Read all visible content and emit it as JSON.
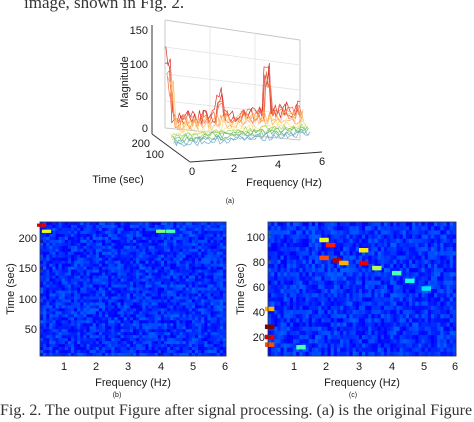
{
  "top_text": "image, shown in Fig. 2.",
  "caption": "Fig. 2. The output Figure after signal processing. (a) is the original Figure",
  "chart_data": [
    {
      "type": "surface3d",
      "panel_label": "(a)",
      "xlabel": "Frequency (Hz)",
      "ylabel": "Time (sec)",
      "zlabel": "Magnitude",
      "x_ticks": [
        "0",
        "2",
        "4",
        "6"
      ],
      "y_ticks": [
        "100",
        "200"
      ],
      "z_ticks": [
        "0",
        "50",
        "100",
        "150"
      ],
      "xlim": [
        0,
        6
      ],
      "ylim": [
        0,
        220
      ],
      "zlim": [
        0,
        150
      ],
      "peaks": [
        {
          "x": 0.1,
          "y": 220,
          "z": 130
        },
        {
          "x": 0.1,
          "y": 150,
          "z": 90
        },
        {
          "x": 2.4,
          "y": 200,
          "z": 55
        },
        {
          "x": 4.5,
          "y": 200,
          "z": 90
        }
      ]
    },
    {
      "type": "heatmap",
      "panel_label": "(b)",
      "xlabel": "Frequency (Hz)",
      "ylabel": "Time (sec)",
      "x_ticks": [
        "1",
        "2",
        "3",
        "4",
        "5",
        "6"
      ],
      "y_ticks": [
        "50",
        "100",
        "150",
        "200"
      ],
      "xlim": [
        0.3,
        6
      ],
      "ylim": [
        10,
        230
      ],
      "hot_spots": [
        {
          "x": 0.35,
          "y": 225,
          "level": 0.9
        },
        {
          "x": 0.5,
          "y": 215,
          "level": 0.6
        },
        {
          "x": 4.0,
          "y": 215,
          "level": 0.5
        },
        {
          "x": 4.3,
          "y": 215,
          "level": 0.45
        }
      ]
    },
    {
      "type": "heatmap",
      "panel_label": "(c)",
      "xlabel": "Frequency (Hz)",
      "ylabel": "Time (sec)",
      "x_ticks": [
        "1",
        "2",
        "3",
        "4",
        "5",
        "6"
      ],
      "y_ticks": [
        "20",
        "40",
        "60",
        "80",
        "100"
      ],
      "xlim": [
        0.3,
        6
      ],
      "ylim": [
        5,
        110
      ],
      "hot_spots": [
        {
          "x": 2.0,
          "y": 96,
          "level": 0.6
        },
        {
          "x": 2.2,
          "y": 92,
          "level": 0.85
        },
        {
          "x": 2.0,
          "y": 82,
          "level": 0.8
        },
        {
          "x": 2.4,
          "y": 80,
          "level": 0.95
        },
        {
          "x": 2.6,
          "y": 78,
          "level": 0.7
        },
        {
          "x": 3.2,
          "y": 88,
          "level": 0.65
        },
        {
          "x": 3.2,
          "y": 78,
          "level": 0.9
        },
        {
          "x": 3.6,
          "y": 74,
          "level": 0.55
        },
        {
          "x": 4.2,
          "y": 70,
          "level": 0.45
        },
        {
          "x": 4.6,
          "y": 64,
          "level": 0.4
        },
        {
          "x": 5.1,
          "y": 58,
          "level": 0.35
        },
        {
          "x": 0.35,
          "y": 28,
          "level": 1.0
        },
        {
          "x": 0.35,
          "y": 20,
          "level": 0.9
        },
        {
          "x": 0.35,
          "y": 14,
          "level": 0.8
        },
        {
          "x": 0.35,
          "y": 42,
          "level": 0.7
        },
        {
          "x": 1.3,
          "y": 12,
          "level": 0.45
        }
      ]
    }
  ]
}
